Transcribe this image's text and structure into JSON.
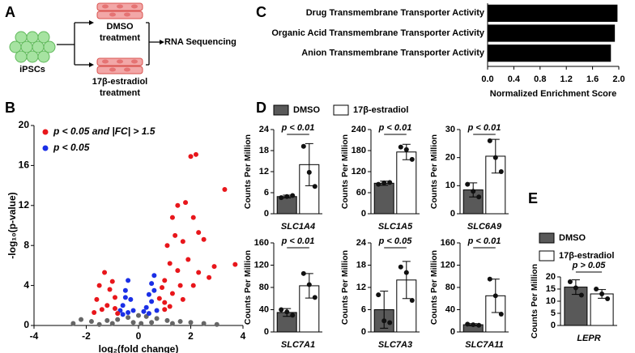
{
  "panel_labels": [
    "A",
    "B",
    "C",
    "D",
    "E"
  ],
  "diagram": {
    "source": "iPSCs",
    "top": [
      "DMSO",
      "treatment"
    ],
    "bottom": [
      "17β-estradiol",
      "treatment"
    ],
    "result": "RNA Sequencing"
  },
  "chart_data": [
    {
      "type": "scatter",
      "xlabel": "log₂(fold change)",
      "ylabel": "-log₁₀(p-value)",
      "xlim": [
        -4,
        4
      ],
      "xticks": [
        -4,
        -2,
        0,
        2,
        4
      ],
      "ylim": [
        0,
        20
      ],
      "yticks": [
        0,
        4,
        8,
        12,
        16,
        20
      ],
      "series": [
        {
          "name": "p < 0.05 and |FC| > 1.5",
          "color": "#e8161b",
          "x": [
            2.2,
            2.0,
            3.3,
            3.7,
            1.8,
            1.5,
            1.3,
            2.1,
            2.3,
            1.4,
            2.5,
            1.7,
            1.1,
            2.9,
            2.7,
            2.3,
            1.9,
            1.2,
            1.5,
            1.0,
            0.9,
            0.8,
            1.6,
            2.1,
            1.3,
            1.7,
            -1.3,
            -1.5,
            -1.1,
            -1.6,
            -0.9,
            -1.2,
            -1.4,
            -0.9,
            -1.7,
            1.0,
            1.2,
            -1.0,
            -0.8,
            1.0
          ],
          "y": [
            17.1,
            16.9,
            13.6,
            6.1,
            12.3,
            12.0,
            10.8,
            10.8,
            9.3,
            9.0,
            8.6,
            8.4,
            8.0,
            5.9,
            4.8,
            5.3,
            6.6,
            6.2,
            5.5,
            4.5,
            3.8,
            2.7,
            4.0,
            4.0,
            3.2,
            2.6,
            5.3,
            4.0,
            3.6,
            2.6,
            2.8,
            2.0,
            1.6,
            1.7,
            1.3,
            1.6,
            1.9,
            4.4,
            1.2,
            2.3
          ]
        },
        {
          "name": "p < 0.05",
          "color": "#1a2fe6",
          "x": [
            0.6,
            0.5,
            0.4,
            0.5,
            0.3,
            0.7,
            -0.4,
            -0.5,
            -0.3,
            -0.6,
            -0.7,
            -0.2,
            0.2,
            -0.4,
            0.6,
            -0.5,
            0.4,
            -0.6
          ],
          "y": [
            5.0,
            4.2,
            3.1,
            2.4,
            1.8,
            1.5,
            4.5,
            3.5,
            2.6,
            2.0,
            1.5,
            1.5,
            1.4,
            1.3,
            3.5,
            2.8,
            1.2,
            1.1
          ]
        },
        {
          "color": "#666666",
          "x": [
            -2.2,
            -1.8,
            -1.2,
            -0.8,
            -0.4,
            0,
            0.3,
            0.7,
            1.1,
            1.6,
            2.0,
            2.5,
            -0.2,
            0.1,
            -1.0,
            0.5,
            1.3,
            -1.5,
            3.0,
            -2.5
          ],
          "y": [
            0.6,
            0.4,
            0.5,
            0.6,
            0.8,
            1.0,
            0.9,
            0.7,
            0.5,
            0.4,
            0.3,
            0.2,
            0.3,
            0.2,
            0.2,
            0.3,
            0.2,
            0.1,
            0.1,
            0.2
          ]
        }
      ]
    },
    {
      "type": "hbar",
      "xlabel": "Normalized Enrichment Score",
      "categories": [
        "Drug Transmembrane Transporter Activity",
        "Organic Acid Transmembrane Transporter Activity",
        "Anion Transmembrane Transporter Activity"
      ],
      "values": [
        1.98,
        1.94,
        1.88
      ],
      "color": "#000000",
      "xlim": [
        0,
        2.0
      ],
      "xticks": [
        {
          "value": 0,
          "label": "0.0"
        },
        0.4,
        0.8,
        1.2,
        1.6,
        {
          "value": 2.0,
          "label": "2.0"
        }
      ]
    },
    {
      "type": "bar",
      "ylabel": "Counts Per Million",
      "annotation": "p < 0.01",
      "categories": [
        "SLC1A4"
      ],
      "ylim": [
        0,
        24
      ],
      "yticks": [
        0,
        6,
        12,
        18,
        24
      ],
      "series": [
        {
          "name": "DMSO",
          "color": "#595959",
          "values": [
            4.9
          ],
          "errors": [
            0.4
          ],
          "points": [
            [
              4.6,
              4.9,
              5.2
            ]
          ]
        },
        {
          "name": "17β-estradiol",
          "color": "#ffffff",
          "values": [
            14
          ],
          "errors": [
            6
          ],
          "points": [
            [
              19.2,
              11.8,
              7.8
            ]
          ]
        }
      ]
    },
    {
      "type": "bar",
      "ylabel": "Counts Per Million",
      "annotation": "p < 0.01",
      "categories": [
        "SLC1A5"
      ],
      "ylim": [
        0,
        240
      ],
      "yticks": [
        0,
        60,
        120,
        180,
        240
      ],
      "series": [
        {
          "color": "#595959",
          "values": [
            87
          ],
          "errors": [
            6
          ],
          "points": [
            [
              84,
              88,
              89
            ]
          ]
        },
        {
          "color": "#ffffff",
          "values": [
            176
          ],
          "errors": [
            22
          ],
          "points": [
            [
              190,
              183,
              155
            ]
          ]
        }
      ]
    },
    {
      "type": "bar",
      "ylabel": "Counts Per Million",
      "annotation": "p < 0.01",
      "categories": [
        "SLC6A9"
      ],
      "ylim": [
        0,
        30
      ],
      "yticks": [
        0,
        10,
        20,
        30
      ],
      "series": [
        {
          "color": "#595959",
          "values": [
            8.5
          ],
          "errors": [
            2.5
          ],
          "points": [
            [
              10.5,
              8,
              6
            ]
          ]
        },
        {
          "color": "#ffffff",
          "values": [
            20.5
          ],
          "errors": [
            6
          ],
          "points": [
            [
              26,
              20,
              15
            ]
          ]
        }
      ]
    },
    {
      "type": "bar",
      "ylabel": "Counts Per Million",
      "annotation": "p < 0.01",
      "categories": [
        "SLC7A1"
      ],
      "ylim": [
        0,
        160
      ],
      "yticks": [
        0,
        40,
        80,
        120,
        160
      ],
      "series": [
        {
          "color": "#595959",
          "values": [
            35
          ],
          "errors": [
            7
          ],
          "points": [
            [
              40,
              36,
              30
            ]
          ]
        },
        {
          "color": "#ffffff",
          "values": [
            83
          ],
          "errors": [
            22
          ],
          "points": [
            [
              105,
              85,
              62
            ]
          ]
        }
      ]
    },
    {
      "type": "bar",
      "ylabel": "Counts Per Million",
      "annotation": "p < 0.05",
      "categories": [
        "SLC7A3"
      ],
      "ylim": [
        0,
        24
      ],
      "yticks": [
        0,
        6,
        12,
        18,
        24
      ],
      "series": [
        {
          "color": "#595959",
          "values": [
            6
          ],
          "errors": [
            5
          ],
          "points": [
            [
              10,
              3,
              2.5
            ]
          ]
        },
        {
          "color": "#ffffff",
          "values": [
            14
          ],
          "errors": [
            5
          ],
          "points": [
            [
              17.5,
              16,
              8.5
            ]
          ]
        }
      ]
    },
    {
      "type": "bar",
      "ylabel": "Counts Per Million",
      "annotation": "p < 0.01",
      "categories": [
        "SLC7A11"
      ],
      "ylim": [
        0,
        160
      ],
      "yticks": [
        0,
        40,
        80,
        120,
        160
      ],
      "series": [
        {
          "color": "#595959",
          "values": [
            13
          ],
          "errors": [
            2
          ],
          "points": [
            [
              14,
              13,
              12
            ]
          ]
        },
        {
          "color": "#ffffff",
          "values": [
            65
          ],
          "errors": [
            30
          ],
          "points": [
            [
              95,
              65,
              32
            ]
          ]
        }
      ]
    },
    {
      "type": "bar",
      "ylabel": "Counts Per Million",
      "annotation": "p > 0.05",
      "categories": [
        "LEPR"
      ],
      "ylim": [
        0,
        20
      ],
      "yticks": [
        0,
        5,
        10,
        15,
        20
      ],
      "series": [
        {
          "name": "DMSO",
          "color": "#595959",
          "values": [
            15.8
          ],
          "errors": [
            3
          ],
          "points": [
            [
              18,
              15.5,
              12.5
            ]
          ]
        },
        {
          "name": "17β-estradiol",
          "color": "#ffffff",
          "values": [
            13
          ],
          "errors": [
            1.8
          ],
          "points": [
            [
              15,
              13,
              11
            ]
          ]
        }
      ]
    }
  ]
}
